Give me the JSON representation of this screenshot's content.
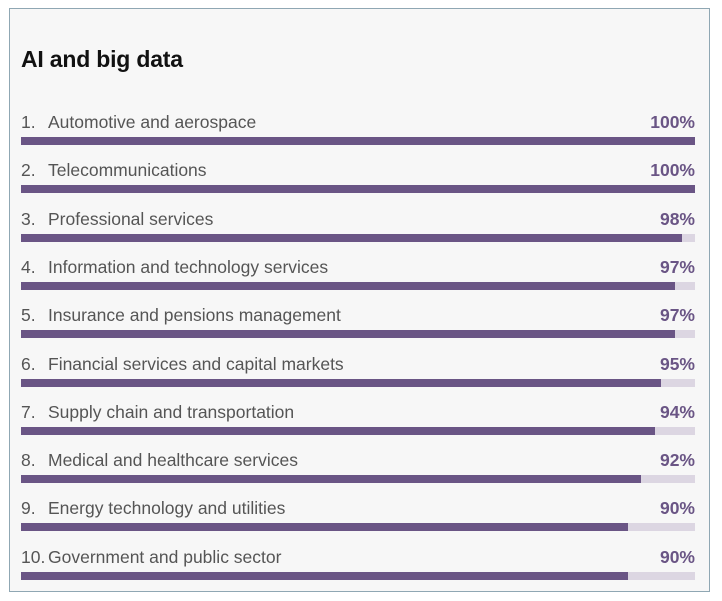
{
  "colors": {
    "bar_fill": "#6a5585",
    "bar_track": "#dcd6e2",
    "value_text": "#6a5585",
    "background": "#f7f7f7"
  },
  "chart_data": {
    "type": "bar",
    "orientation": "horizontal",
    "title": "AI and big data",
    "unit": "%",
    "xlim": [
      0,
      100
    ],
    "grid": false,
    "categories": [
      "Automotive and aerospace",
      "Telecommunications",
      "Professional services",
      "Information and technology services",
      "Insurance and pensions management",
      "Financial services and capital markets",
      "Supply chain and transportation",
      "Medical and healthcare services",
      "Energy technology and utilities",
      "Government and public sector"
    ],
    "values": [
      100,
      100,
      98,
      97,
      97,
      95,
      94,
      92,
      90,
      90
    ],
    "ranks": [
      "1.",
      "2.",
      "3.",
      "4.",
      "5.",
      "6.",
      "7.",
      "8.",
      "9.",
      "10."
    ],
    "value_labels": [
      "100%",
      "100%",
      "98%",
      "97%",
      "97%",
      "95%",
      "94%",
      "92%",
      "90%",
      "90%"
    ]
  }
}
